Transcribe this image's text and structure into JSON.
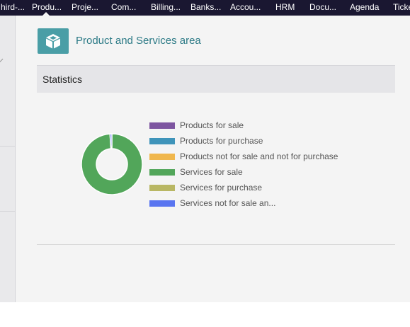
{
  "nav": {
    "items": [
      {
        "label": "hird-..."
      },
      {
        "label": "Produ..."
      },
      {
        "label": "Proje..."
      },
      {
        "label": "Com..."
      },
      {
        "label": "Billing..."
      },
      {
        "label": "Banks..."
      },
      {
        "label": "Accou..."
      },
      {
        "label": "HRM"
      },
      {
        "label": "Docu..."
      },
      {
        "label": "Agenda"
      },
      {
        "label": "Ticke"
      }
    ],
    "active_index": 1
  },
  "page": {
    "title": "Product and Services area",
    "icon": "box-icon"
  },
  "statistics": {
    "header": "Statistics"
  },
  "chart_data": {
    "type": "pie",
    "categories": [
      "Products for sale",
      "Products for purchase",
      "Products not for sale and not for purchase",
      "Services for sale",
      "Services for purchase",
      "Services not for sale an..."
    ],
    "values": [
      0,
      0,
      0,
      99,
      0,
      1
    ],
    "colors": [
      "#7d55a0",
      "#3f94ba",
      "#f0b74d",
      "#52a65a",
      "#b9b764",
      "#5975f0"
    ],
    "donut": true,
    "legend": "right"
  },
  "colors": {
    "topbar": "#1a1731",
    "accent": "#2c7a86",
    "icon_bg": "#4a9ea6"
  }
}
